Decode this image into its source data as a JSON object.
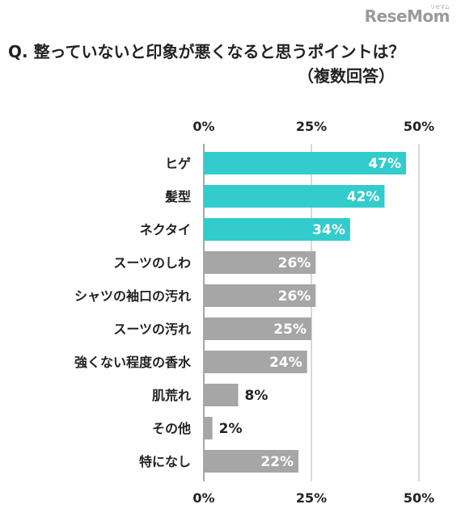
{
  "brand": {
    "logo_text": "ReseMom",
    "logo_subtext": "リセマム"
  },
  "chart_data": {
    "type": "bar",
    "orientation": "horizontal",
    "title": "Q. 整っていないと印象が悪くなると思うポイントは？",
    "subtitle": "（複数回答）",
    "categories": [
      "ヒゲ",
      "髪型",
      "ネクタイ",
      "スーツのしわ",
      "シャツの袖口の汚れ",
      "スーツの汚れ",
      "強くない程度の香水",
      "肌荒れ",
      "その他",
      "特になし"
    ],
    "values": [
      47,
      42,
      34,
      26,
      26,
      25,
      24,
      8,
      2,
      22
    ],
    "value_labels": [
      "47%",
      "42%",
      "34%",
      "26%",
      "26%",
      "25%",
      "24%",
      "8%",
      "2%",
      "22%"
    ],
    "xlim": [
      0,
      50
    ],
    "ticks": [
      "0%",
      "25%",
      "50%"
    ],
    "tick_values": [
      0,
      25,
      50
    ],
    "highlight_count": 3,
    "colors": {
      "highlight": "#33cccc",
      "normal": "#a6a6a6",
      "axis": "#888888",
      "grid": "#b0b0b0"
    },
    "grid": true
  }
}
